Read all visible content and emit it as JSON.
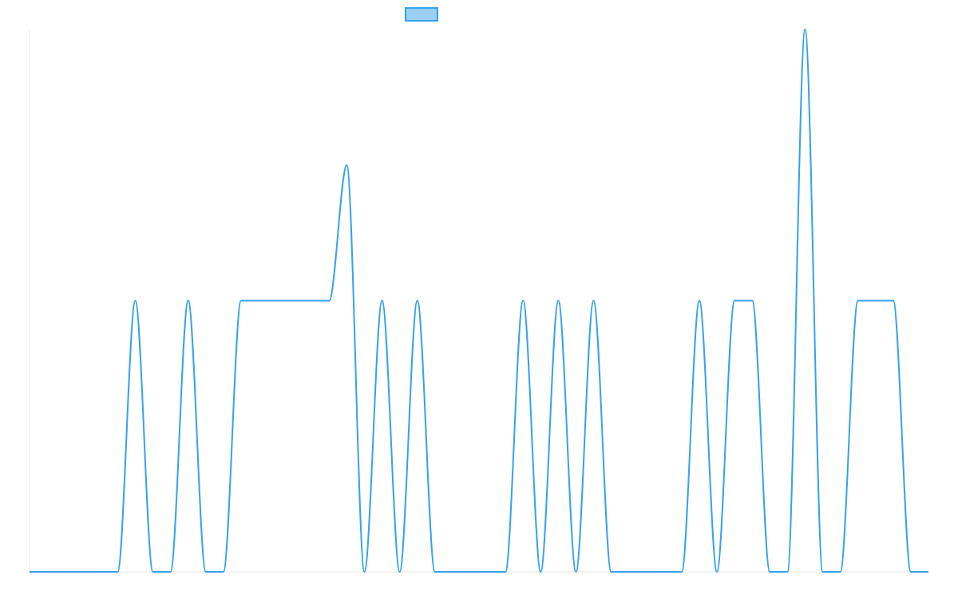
{
  "chart_data": {
    "type": "line",
    "title": "",
    "xlabel": "",
    "ylabel": "",
    "grid": false,
    "legend": {
      "position": "top-center",
      "entries": [
        {
          "label": ""
        }
      ]
    },
    "colors": {
      "line": "#36a2eb",
      "fill": "#9ad0f5",
      "axis": "#e5e5e5"
    },
    "x": [
      0,
      1,
      2,
      3,
      4,
      5,
      6,
      7,
      8,
      9,
      10,
      11,
      12,
      13,
      14,
      15,
      16,
      17,
      18,
      19,
      20,
      21,
      22,
      23,
      24,
      25,
      26,
      27,
      28,
      29,
      30,
      31,
      32,
      33,
      34,
      35,
      36,
      37,
      38,
      39,
      40,
      41,
      42,
      43,
      44,
      45,
      46,
      47,
      48,
      49,
      50,
      51
    ],
    "series": [
      {
        "name": "",
        "values": [
          0,
          0,
          0,
          0,
          0,
          0,
          1,
          0,
          0,
          1,
          0,
          0,
          1,
          1,
          1,
          1,
          1,
          1,
          1.5,
          0,
          1,
          0,
          1,
          0,
          0,
          0,
          0,
          0,
          1,
          0,
          1,
          0,
          1,
          0,
          0,
          0,
          0,
          0,
          1,
          0,
          1,
          1,
          0,
          0,
          2,
          0,
          0,
          1,
          1,
          1,
          0,
          0
        ]
      }
    ],
    "xlim": [
      0,
      51
    ],
    "ylim": [
      0,
      2
    ]
  }
}
